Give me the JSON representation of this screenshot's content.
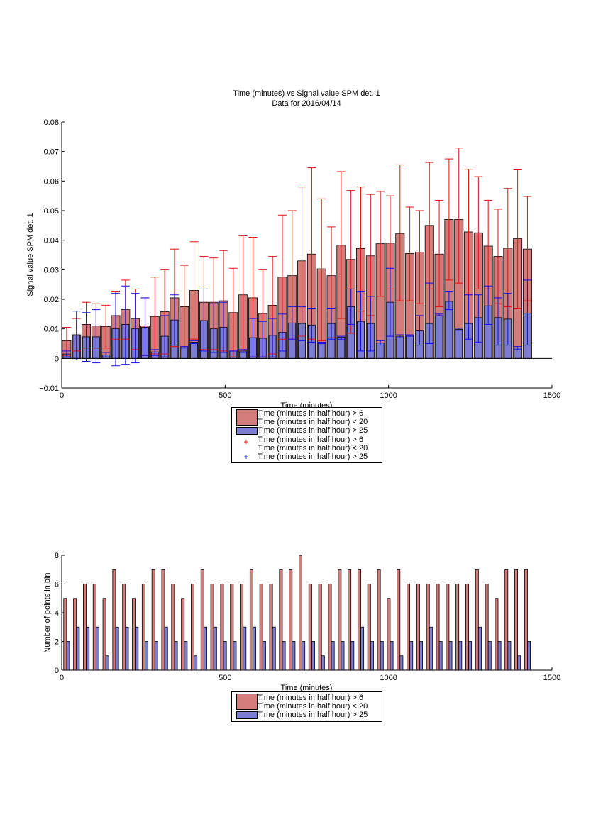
{
  "colors": {
    "red_fill": "#d27c7c",
    "blue_fill": "#7c7cd2",
    "red_err": "#e01010",
    "blue_err": "#1010e0"
  },
  "chart_data": [
    {
      "type": "bar",
      "title": "Time (minutes) vs Signal value SPM det. 1",
      "subtitle": "Data for 2016/04/14",
      "xlabel": "Time (minutes)",
      "ylabel": "Signal value SPM det. 1",
      "xlim": [
        0,
        1500
      ],
      "ylim": [
        -0.01,
        0.08
      ],
      "xticks": [
        "0",
        "500",
        "1000",
        "1500"
      ],
      "yticks": [
        "−0.01",
        "0",
        "0.01",
        "0.02",
        "0.03",
        "0.04",
        "0.05",
        "0.06",
        "0.07",
        "0.08"
      ],
      "bin_width": 30,
      "x": [
        15,
        45,
        75,
        105,
        135,
        165,
        195,
        225,
        255,
        285,
        315,
        345,
        375,
        405,
        435,
        465,
        495,
        525,
        555,
        585,
        615,
        645,
        675,
        705,
        735,
        765,
        795,
        825,
        855,
        885,
        915,
        945,
        975,
        1005,
        1035,
        1065,
        1095,
        1125,
        1155,
        1185,
        1215,
        1245,
        1275,
        1305,
        1335,
        1365,
        1395,
        1425
      ],
      "series": [
        {
          "name": "Time (minutes in half hour) > 6\nTime (minutes in half hour) < 20",
          "values": [
            0.006,
            0.008,
            0.0115,
            0.011,
            0.0108,
            0.0145,
            0.0165,
            0.0135,
            0.011,
            0.0142,
            0.0158,
            0.0205,
            0.0175,
            0.023,
            0.019,
            0.019,
            0.0195,
            0.0155,
            0.0215,
            0.0205,
            0.0152,
            0.018,
            0.0275,
            0.028,
            0.033,
            0.0353,
            0.0303,
            0.028,
            0.0383,
            0.0335,
            0.0372,
            0.0347,
            0.0388,
            0.039,
            0.0423,
            0.0355,
            0.036,
            0.045,
            0.0353,
            0.047,
            0.047,
            0.0428,
            0.0425,
            0.038,
            0.0345,
            0.0373,
            0.0405,
            0.037
          ],
          "err_low": [
            0.001,
            0.0025,
            0.0035,
            0.0035,
            0.0035,
            0.0065,
            0.0065,
            0.003,
            0.001,
            0.0015,
            0.0015,
            0.004,
            0.004,
            0.0065,
            0.003,
            0.003,
            0.0025,
            0.0005,
            0.002,
            0.0005,
            0.0005,
            0.0015,
            0.0065,
            0.0065,
            0.0075,
            0.0065,
            0.006,
            0.007,
            0.0135,
            0.0085,
            0.016,
            0.0145,
            0.021,
            0.0235,
            0.0195,
            0.0195,
            0.0185,
            0.0235,
            0.0175,
            0.0265,
            0.0255,
            0.0215,
            0.0235,
            0.0235,
            0.0185,
            0.0175,
            0.017,
            0.0195
          ],
          "err_high": [
            0.0105,
            0.0135,
            0.019,
            0.0185,
            0.018,
            0.0225,
            0.0265,
            0.0235,
            0.0205,
            0.0275,
            0.03,
            0.037,
            0.0315,
            0.0395,
            0.0345,
            0.034,
            0.0365,
            0.0305,
            0.0415,
            0.041,
            0.03,
            0.0345,
            0.0485,
            0.05,
            0.058,
            0.0645,
            0.054,
            0.0445,
            0.0632,
            0.0568,
            0.058,
            0.0555,
            0.0565,
            0.055,
            0.0655,
            0.0512,
            0.05,
            0.0663,
            0.0535,
            0.0675,
            0.0712,
            0.064,
            0.0615,
            0.0535,
            0.0505,
            0.0575,
            0.0638,
            0.0548
          ]
        },
        {
          "name": "Time (minutes in half hour) > 25",
          "values": [
            0.0015,
            0.0078,
            0.0073,
            0.0073,
            0.0012,
            0.01,
            0.0115,
            0.01,
            0.0105,
            0.0022,
            0.0075,
            0.013,
            0.004,
            0.0055,
            0.0128,
            0.01,
            0.0105,
            0.0025,
            0.0025,
            0.007,
            0.0068,
            0.0078,
            0.0088,
            0.012,
            0.0118,
            0.0113,
            0.0053,
            0.0118,
            0.0072,
            0.0175,
            0.0125,
            0.0118,
            0.0052,
            0.019,
            0.0075,
            0.0078,
            0.0093,
            0.0118,
            0.0145,
            0.0193,
            0.0098,
            0.0118,
            0.0138,
            0.0178,
            0.0138,
            0.0133,
            0.0035,
            0.0153
          ],
          "err_low": [
            0.0005,
            -0.0005,
            -0.001,
            -0.0015,
            0.0005,
            -0.0025,
            -0.002,
            -0.0015,
            0.001,
            0.001,
            0.0005,
            0.0045,
            0.0035,
            0.005,
            0.0025,
            0.002,
            0.002,
            0.0025,
            0.002,
            0.0005,
            0.0005,
            0.0005,
            0.0025,
            0.0065,
            0.006,
            0.0055,
            0.005,
            0.0065,
            0.0065,
            0.0115,
            0.0025,
            0.0025,
            0.0045,
            0.0075,
            0.007,
            0.0075,
            0.0045,
            0.005,
            0.0145,
            0.0165,
            0.0095,
            0.0065,
            0.0055,
            0.0115,
            0.0045,
            0.0045,
            0.003,
            0.0045
          ],
          "err_high": [
            0.0025,
            0.016,
            0.0155,
            0.0165,
            0.002,
            0.022,
            0.0245,
            0.022,
            0.0205,
            0.003,
            0.0145,
            0.0215,
            0.004,
            0.006,
            0.0235,
            0.0185,
            0.019,
            0.0025,
            0.003,
            0.0135,
            0.0125,
            0.0135,
            0.015,
            0.0175,
            0.0175,
            0.017,
            0.0055,
            0.017,
            0.0075,
            0.0235,
            0.0225,
            0.021,
            0.006,
            0.0305,
            0.008,
            0.008,
            0.0145,
            0.0255,
            0.015,
            0.0225,
            0.0102,
            0.0215,
            0.0215,
            0.0245,
            0.0205,
            0.022,
            0.004,
            0.0265
          ]
        }
      ],
      "legend": {
        "placement": "below",
        "entries": [
          "Time (minutes in half hour) > 6\nTime (minutes in half hour) < 20",
          "Time (minutes in half hour) > 25",
          "Time (minutes in half hour) > 6\nTime (minutes in half hour) < 20",
          "Time (minutes in half hour) > 25"
        ]
      }
    },
    {
      "type": "bar",
      "xlabel": "Time (minutes)",
      "ylabel": "Number of points in bin",
      "xlim": [
        0,
        1500
      ],
      "ylim": [
        0,
        8
      ],
      "xticks": [
        "0",
        "500",
        "1000",
        "1500"
      ],
      "yticks": [
        "0",
        "2",
        "4",
        "6",
        "8"
      ],
      "bin_width": 30,
      "x": [
        15,
        45,
        75,
        105,
        135,
        165,
        195,
        225,
        255,
        285,
        315,
        345,
        375,
        405,
        435,
        465,
        495,
        525,
        555,
        585,
        615,
        645,
        675,
        705,
        735,
        765,
        795,
        825,
        855,
        885,
        915,
        945,
        975,
        1005,
        1035,
        1065,
        1095,
        1125,
        1155,
        1185,
        1215,
        1245,
        1275,
        1305,
        1335,
        1365,
        1395,
        1425
      ],
      "series": [
        {
          "name": "Time (minutes in half hour) > 6\nTime (minutes in half hour) < 20",
          "values": [
            5,
            5,
            6,
            6,
            5,
            7,
            6,
            5,
            6,
            7,
            7,
            6,
            5,
            6,
            7,
            6,
            6,
            6,
            6,
            7,
            6,
            6,
            7,
            7,
            8,
            6,
            6,
            6,
            7,
            7,
            7,
            6,
            7,
            5,
            7,
            6,
            6,
            6,
            6,
            6,
            6,
            6,
            7,
            6,
            5,
            7,
            7,
            7
          ]
        },
        {
          "name": "Time (minutes in half hour) > 25",
          "values": [
            2,
            3,
            3,
            3,
            1,
            3,
            3,
            3,
            2,
            2,
            3,
            2,
            2,
            1,
            3,
            3,
            2,
            2,
            3,
            3,
            2,
            3,
            2,
            2,
            2,
            2,
            1,
            2,
            2,
            2,
            3,
            2,
            2,
            2,
            1,
            2,
            2,
            3,
            2,
            2,
            2,
            2,
            3,
            2,
            2,
            2,
            1,
            2
          ]
        }
      ],
      "legend": {
        "placement": "below",
        "entries": [
          "Time (minutes in half hour) > 6\nTime (minutes in half hour) < 20",
          "Time (minutes in half hour) > 25"
        ]
      }
    }
  ]
}
